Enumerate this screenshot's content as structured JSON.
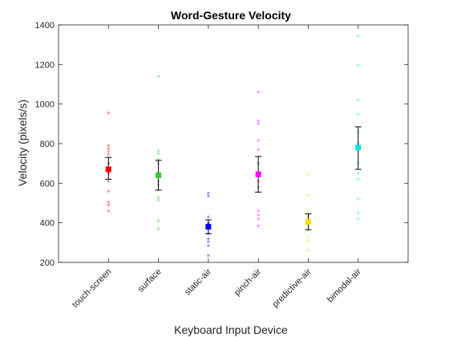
{
  "chart_data": {
    "type": "scatter",
    "title": "Word-Gesture Velocity",
    "xlabel": "Keyboard Input Device",
    "ylabel": "Velocity (pixels/s)",
    "ylim": [
      200,
      1400
    ],
    "yticks": [
      200,
      400,
      600,
      800,
      1000,
      1200,
      1400
    ],
    "grid": false,
    "categories": [
      "touch-screen",
      "surface",
      "static-air",
      "pinch-air",
      "predictive-air",
      "bimodal-air"
    ],
    "series": [
      {
        "category": "touch-screen",
        "color": "#ff0000",
        "mean": 670,
        "ci_low": 620,
        "ci_high": 730,
        "points": [
          955,
          790,
          775,
          760,
          745,
          700,
          680,
          650,
          610,
          560,
          505,
          490,
          460
        ]
      },
      {
        "category": "surface",
        "color": "#33cc33",
        "mean": 640,
        "ci_low": 565,
        "ci_high": 715,
        "points": [
          1140,
          765,
          750,
          720,
          700,
          650,
          610,
          590,
          530,
          515,
          410,
          370
        ]
      },
      {
        "category": "static-air",
        "color": "#0000ff",
        "mean": 380,
        "ci_low": 345,
        "ci_high": 415,
        "points": [
          550,
          535,
          430,
          400,
          390,
          370,
          345,
          320,
          305,
          285,
          235
        ]
      },
      {
        "category": "pinch-air",
        "color": "#ff00ff",
        "mean": 645,
        "ci_low": 555,
        "ci_high": 735,
        "points": [
          1060,
          915,
          900,
          815,
          770,
          700,
          640,
          610,
          580,
          460,
          440,
          420,
          385
        ]
      },
      {
        "category": "predictive-air",
        "color": "#ffdd00",
        "mean": 405,
        "ci_low": 365,
        "ci_high": 445,
        "points": [
          645,
          540,
          460,
          430,
          410,
          395,
          370,
          330,
          310,
          260
        ]
      },
      {
        "category": "bimodal-air",
        "color": "#00e5e5",
        "mean": 780,
        "ci_low": 670,
        "ci_high": 885,
        "points": [
          1345,
          1195,
          1020,
          950,
          860,
          800,
          700,
          650,
          620,
          520,
          450,
          420
        ]
      }
    ]
  }
}
